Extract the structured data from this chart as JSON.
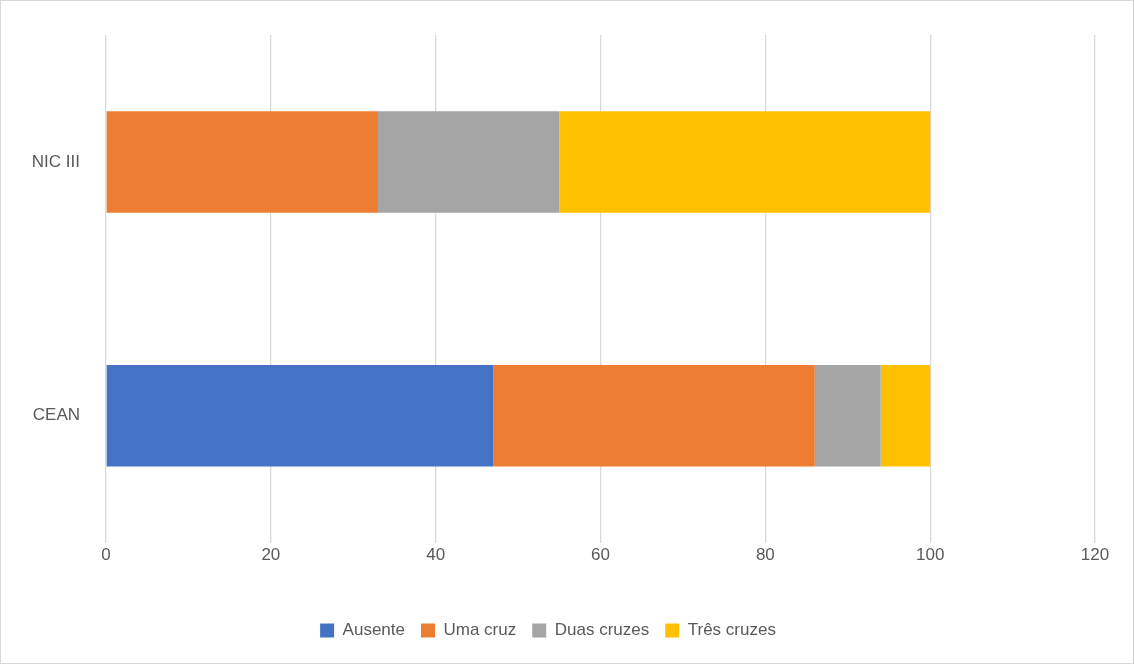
{
  "chart_data": {
    "type": "bar",
    "orientation": "horizontal",
    "stacked": true,
    "categories": [
      "NIC III",
      "CEAN"
    ],
    "series": [
      {
        "name": "Ausente",
        "color": "#4472c4",
        "values": [
          0,
          47
        ]
      },
      {
        "name": "Uma cruz",
        "color": "#ed7d31",
        "values": [
          33,
          39
        ]
      },
      {
        "name": "Duas cruzes",
        "color": "#a5a5a5",
        "values": [
          22,
          8
        ]
      },
      {
        "name": "Três cruzes",
        "color": "#ffc000",
        "values": [
          45,
          6
        ]
      }
    ],
    "xlim": [
      0,
      120
    ],
    "xticks": [
      0,
      20,
      40,
      60,
      80,
      100,
      120
    ],
    "grid": "x",
    "legend": "bottom"
  }
}
